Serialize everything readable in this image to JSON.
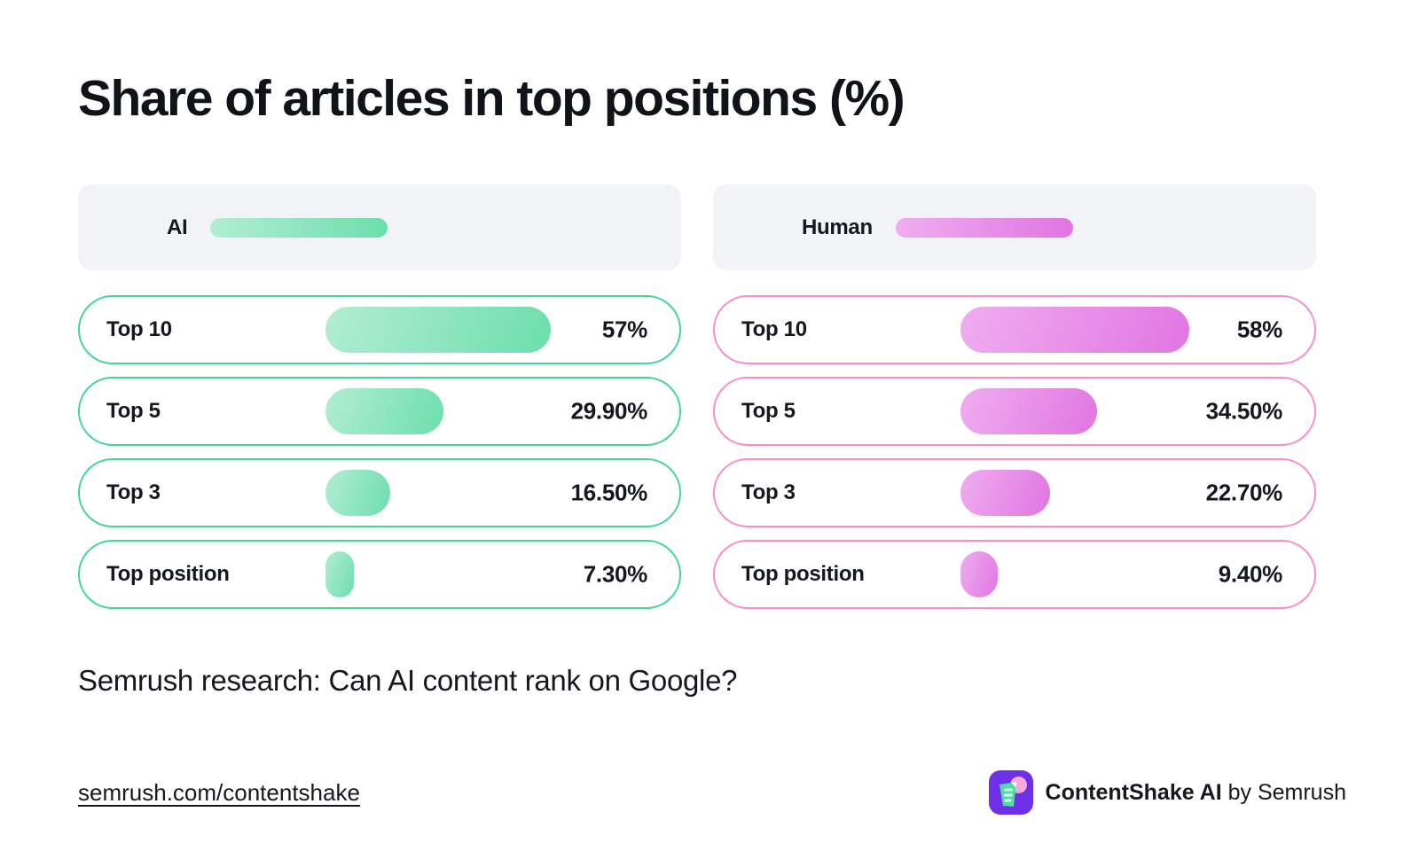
{
  "title": "Share of articles in top positions (%)",
  "subtitle": "Semrush research: Can AI content rank on Google?",
  "footer": {
    "link": "semrush.com/contentshake",
    "brand_bold": "ContentShake AI",
    "brand_rest": " by Semrush",
    "logo_icon": "contentshake-shake-glass-icon"
  },
  "chart_data": {
    "type": "bar",
    "orientation": "horizontal",
    "title": "Share of articles in top positions (%)",
    "unit": "%",
    "legend_position": "top",
    "categories": [
      "Top 10",
      "Top 5",
      "Top 3",
      "Top position"
    ],
    "series": [
      {
        "name": "AI",
        "values": [
          57,
          29.9,
          16.5,
          7.3
        ],
        "labels": [
          "57%",
          "29.90%",
          "16.50%",
          "7.30%"
        ],
        "color_start": "#b2edd3",
        "color_end": "#6cdeac",
        "border_color": "#41d693"
      },
      {
        "name": "Human",
        "values": [
          58,
          34.5,
          22.7,
          9.4
        ],
        "labels": [
          "58%",
          "34.50%",
          "22.70%",
          "9.40%"
        ],
        "color_start": "#efadf0",
        "color_end": "#e175e2",
        "border_color": "#f98ccf"
      }
    ],
    "colors": {
      "logo_purple": "#6e30e7",
      "logo_mint": "#4fdda6",
      "logo_pink": "#f9a9dc"
    }
  }
}
